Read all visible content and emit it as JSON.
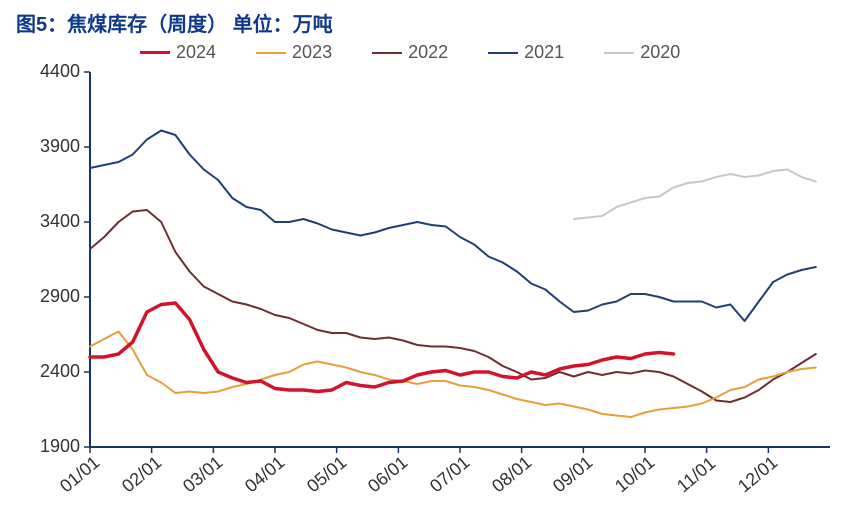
{
  "title": "图5：焦煤库存（周度）  单位：万吨",
  "chart": {
    "type": "line",
    "background_color": "#ffffff",
    "title_color": "#0f3a8a",
    "title_fontsize": 20,
    "axis_color": "#16365c",
    "axis_width": 2,
    "label_fontsize": 18,
    "label_color": "#333333",
    "xlim": [
      0,
      52
    ],
    "ylim": [
      1900,
      4400
    ],
    "ytick_step": 500,
    "yticks": [
      1900,
      2400,
      2900,
      3400,
      3900,
      4400
    ],
    "xticks_idx": [
      0,
      4.33,
      8.67,
      13,
      17.33,
      21.67,
      26,
      30.33,
      34.67,
      39,
      43.33,
      47.67
    ],
    "xtick_labels": [
      "01/01",
      "02/01",
      "03/01",
      "04/01",
      "05/01",
      "06/01",
      "07/01",
      "08/01",
      "09/01",
      "10/01",
      "11/01",
      "12/01"
    ],
    "grid": false,
    "legend": {
      "items": [
        {
          "label": "2024",
          "color": "#d1142b",
          "width": 3.5
        },
        {
          "label": "2023",
          "color": "#e6a03b",
          "width": 2
        },
        {
          "label": "2022",
          "color": "#6d2f2f",
          "width": 2
        },
        {
          "label": "2021",
          "color": "#1f3f75",
          "width": 2
        },
        {
          "label": "2020",
          "color": "#c8c8c8",
          "width": 2
        }
      ]
    },
    "series": {
      "s2024": {
        "color": "#d1142b",
        "width": 3.5,
        "x": [
          0,
          1,
          2,
          3,
          4,
          5,
          6,
          7,
          8,
          9,
          10,
          11,
          12,
          13,
          14,
          15,
          16,
          17,
          18,
          19,
          20,
          21,
          22,
          23,
          24,
          25,
          26,
          27,
          28,
          29,
          30,
          31,
          32,
          33,
          34,
          35,
          36,
          37,
          38,
          39,
          40,
          41
        ],
        "y": [
          2500,
          2500,
          2520,
          2600,
          2800,
          2850,
          2860,
          2750,
          2550,
          2400,
          2360,
          2330,
          2340,
          2290,
          2280,
          2280,
          2270,
          2280,
          2330,
          2310,
          2300,
          2330,
          2340,
          2380,
          2400,
          2410,
          2380,
          2400,
          2400,
          2370,
          2360,
          2400,
          2380,
          2420,
          2440,
          2450,
          2480,
          2500,
          2490,
          2520,
          2530,
          2520
        ]
      },
      "s2023": {
        "color": "#e6a03b",
        "width": 2,
        "x": [
          0,
          1,
          2,
          3,
          4,
          5,
          6,
          7,
          8,
          9,
          10,
          11,
          12,
          13,
          14,
          15,
          16,
          17,
          18,
          19,
          20,
          21,
          22,
          23,
          24,
          25,
          26,
          27,
          28,
          29,
          30,
          31,
          32,
          33,
          34,
          35,
          36,
          37,
          38,
          39,
          40,
          41,
          42,
          43,
          44,
          45,
          46,
          47,
          48,
          49,
          50,
          51
        ],
        "y": [
          2570,
          2620,
          2670,
          2550,
          2380,
          2330,
          2260,
          2270,
          2260,
          2270,
          2300,
          2320,
          2350,
          2380,
          2400,
          2450,
          2470,
          2450,
          2430,
          2400,
          2380,
          2350,
          2340,
          2320,
          2340,
          2340,
          2310,
          2300,
          2280,
          2250,
          2220,
          2200,
          2180,
          2190,
          2170,
          2150,
          2120,
          2110,
          2100,
          2130,
          2150,
          2160,
          2170,
          2190,
          2230,
          2280,
          2300,
          2350,
          2370,
          2400,
          2420,
          2430
        ]
      },
      "s2022": {
        "color": "#6d2f2f",
        "width": 2,
        "x": [
          0,
          1,
          2,
          3,
          4,
          5,
          6,
          7,
          8,
          9,
          10,
          11,
          12,
          13,
          14,
          15,
          16,
          17,
          18,
          19,
          20,
          21,
          22,
          23,
          24,
          25,
          26,
          27,
          28,
          29,
          30,
          31,
          32,
          33,
          34,
          35,
          36,
          37,
          38,
          39,
          40,
          41,
          42,
          43,
          44,
          45,
          46,
          47,
          48,
          49,
          50,
          51
        ],
        "y": [
          3220,
          3300,
          3400,
          3470,
          3480,
          3400,
          3200,
          3070,
          2970,
          2920,
          2870,
          2850,
          2820,
          2780,
          2760,
          2720,
          2680,
          2660,
          2660,
          2630,
          2620,
          2630,
          2610,
          2580,
          2570,
          2570,
          2560,
          2540,
          2500,
          2440,
          2400,
          2350,
          2360,
          2400,
          2370,
          2400,
          2380,
          2400,
          2390,
          2410,
          2400,
          2370,
          2320,
          2270,
          2210,
          2200,
          2230,
          2280,
          2350,
          2400,
          2460,
          2520
        ]
      },
      "s2021": {
        "color": "#1f3f75",
        "width": 2,
        "x": [
          0,
          1,
          2,
          3,
          4,
          5,
          6,
          7,
          8,
          9,
          10,
          11,
          12,
          13,
          14,
          15,
          16,
          17,
          18,
          19,
          20,
          21,
          22,
          23,
          24,
          25,
          26,
          27,
          28,
          29,
          30,
          31,
          32,
          33,
          34,
          35,
          36,
          37,
          38,
          39,
          40,
          41,
          42,
          43,
          44,
          45,
          46,
          47,
          48,
          49,
          50,
          51
        ],
        "y": [
          3760,
          3780,
          3800,
          3850,
          3950,
          4010,
          3980,
          3850,
          3750,
          3680,
          3560,
          3500,
          3480,
          3400,
          3400,
          3420,
          3390,
          3350,
          3330,
          3310,
          3330,
          3360,
          3380,
          3400,
          3380,
          3370,
          3300,
          3250,
          3170,
          3130,
          3070,
          2990,
          2950,
          2870,
          2800,
          2810,
          2850,
          2870,
          2920,
          2920,
          2900,
          2870,
          2870,
          2870,
          2830,
          2850,
          2740,
          2870,
          3000,
          3050,
          3080,
          3100
        ]
      },
      "s2020": {
        "color": "#c8c8c8",
        "width": 2,
        "x": [
          34,
          35,
          36,
          37,
          38,
          39,
          40,
          41,
          42,
          43,
          44,
          45,
          46,
          47,
          48,
          49,
          50,
          51
        ],
        "y": [
          3420,
          3430,
          3440,
          3500,
          3530,
          3560,
          3570,
          3630,
          3660,
          3670,
          3700,
          3720,
          3700,
          3710,
          3740,
          3750,
          3700,
          3670
        ]
      }
    }
  }
}
